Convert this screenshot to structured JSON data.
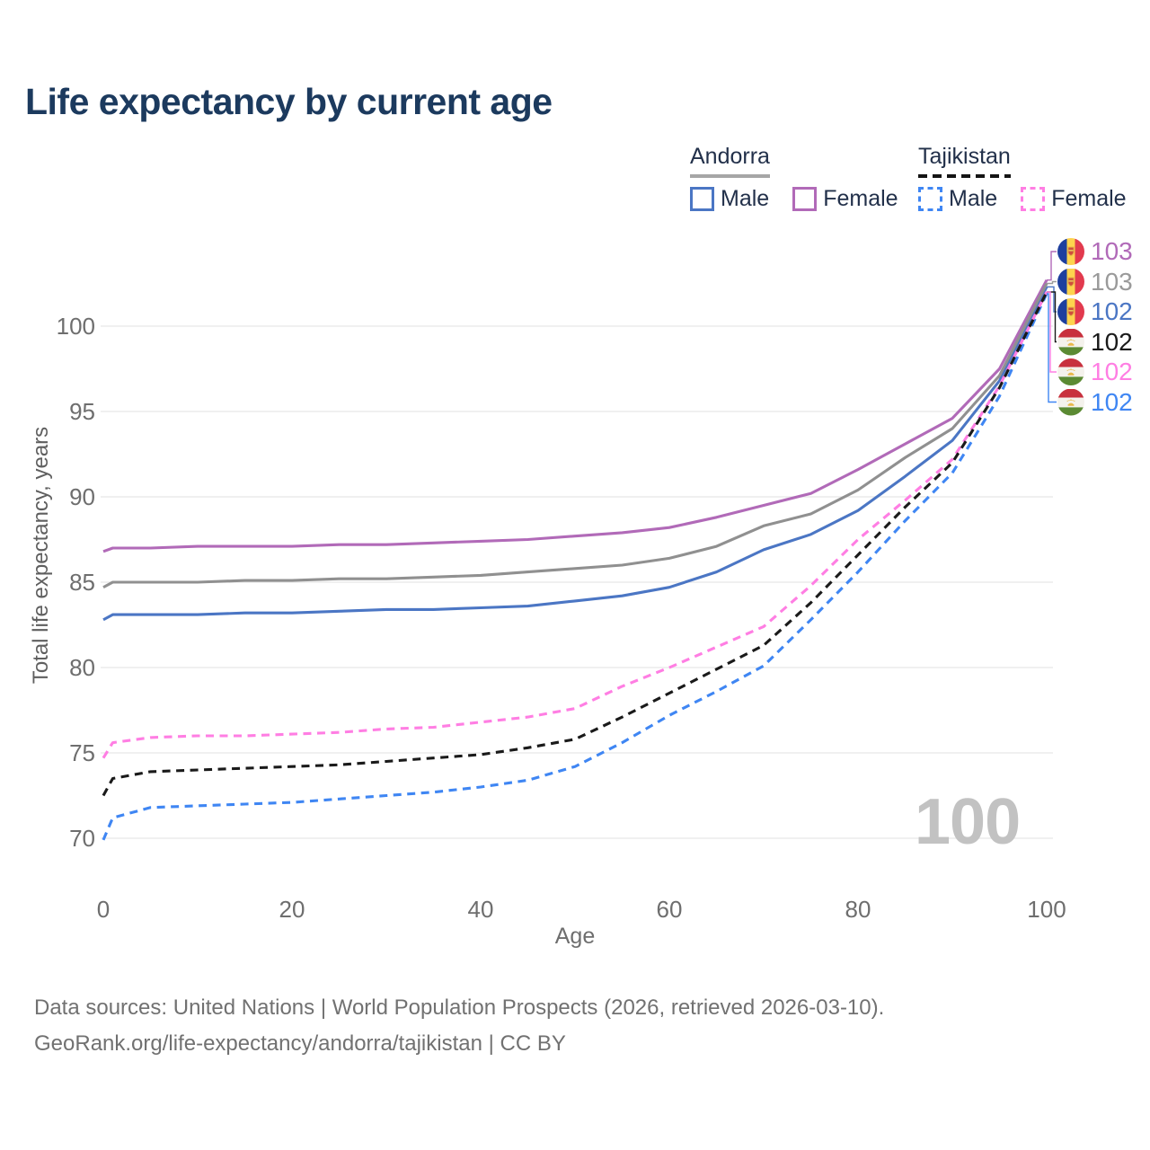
{
  "title": "Life expectancy by current age",
  "watermark": "100",
  "legend": {
    "groups": [
      {
        "name": "Andorra",
        "underline_style": "solid",
        "underline_color": "#a6a6a6",
        "items": [
          {
            "label": "Male",
            "color": "#4b76c4",
            "dash": false
          },
          {
            "label": "Female",
            "color": "#b16ab8",
            "dash": false
          }
        ]
      },
      {
        "name": "Tajikistan",
        "underline_style": "dashed",
        "underline_color": "#141414",
        "items": [
          {
            "label": "Male",
            "color": "#3f86f3",
            "dash": true
          },
          {
            "label": "Female",
            "color": "#ff7ee3",
            "dash": true
          }
        ]
      }
    ]
  },
  "chart_data": {
    "type": "line",
    "title": "Life expectancy by current age",
    "xlabel": "Age",
    "ylabel": "Total life expectancy, years",
    "xlim": [
      0,
      100
    ],
    "ylim": [
      69,
      104
    ],
    "x_ticks": [
      0,
      20,
      40,
      60,
      80,
      100
    ],
    "y_ticks": [
      70,
      75,
      80,
      85,
      90,
      95,
      100
    ],
    "grid": "horizontal",
    "legend_position": "top-right",
    "x": [
      0,
      1,
      5,
      10,
      15,
      20,
      25,
      30,
      35,
      40,
      45,
      50,
      55,
      60,
      65,
      70,
      75,
      80,
      85,
      90,
      95,
      100
    ],
    "series": [
      {
        "name": "Andorra Male",
        "color": "#4b76c4",
        "dash": false,
        "values": [
          82.8,
          83.1,
          83.1,
          83.1,
          83.2,
          83.2,
          83.3,
          83.4,
          83.4,
          83.5,
          83.6,
          83.9,
          84.2,
          84.7,
          85.6,
          86.9,
          87.8,
          89.2,
          91.2,
          93.3,
          96.8,
          102.3
        ]
      },
      {
        "name": "Andorra Female",
        "color": "#b16ab8",
        "dash": false,
        "values": [
          86.8,
          87.0,
          87.0,
          87.1,
          87.1,
          87.1,
          87.2,
          87.2,
          87.3,
          87.4,
          87.5,
          87.7,
          87.9,
          88.2,
          88.8,
          89.5,
          90.2,
          91.6,
          93.1,
          94.6,
          97.5,
          102.7
        ]
      },
      {
        "name": "Andorra (both sexes)",
        "color": "#909090",
        "dash": false,
        "values": [
          84.7,
          85.0,
          85.0,
          85.0,
          85.1,
          85.1,
          85.2,
          85.2,
          85.3,
          85.4,
          85.6,
          85.8,
          86.0,
          86.4,
          87.1,
          88.3,
          89.0,
          90.4,
          92.3,
          94.0,
          97.1,
          102.5
        ]
      },
      {
        "name": "Tajikistan Male",
        "color": "#3f86f3",
        "dash": true,
        "values": [
          69.9,
          71.2,
          71.8,
          71.9,
          72.0,
          72.1,
          72.3,
          72.5,
          72.7,
          73.0,
          73.4,
          74.2,
          75.6,
          77.2,
          78.6,
          80.1,
          82.8,
          85.6,
          88.6,
          91.4,
          95.9,
          101.9
        ]
      },
      {
        "name": "Tajikistan Female",
        "color": "#ff7ee3",
        "dash": true,
        "values": [
          74.7,
          75.6,
          75.9,
          76.0,
          76.0,
          76.1,
          76.2,
          76.4,
          76.5,
          76.8,
          77.1,
          77.6,
          78.9,
          80.0,
          81.2,
          82.4,
          84.8,
          87.5,
          89.8,
          92.2,
          96.5,
          102.0
        ]
      },
      {
        "name": "Tajikistan (both sexes)",
        "color": "#1a1a1a",
        "dash": true,
        "values": [
          72.5,
          73.5,
          73.9,
          74.0,
          74.1,
          74.2,
          74.3,
          74.5,
          74.7,
          74.9,
          75.3,
          75.8,
          77.1,
          78.5,
          79.9,
          81.3,
          83.8,
          86.6,
          89.4,
          92.0,
          96.4,
          102.0
        ]
      }
    ]
  },
  "end_labels": [
    {
      "value": "103",
      "flag": "andorra",
      "color": "#b16ab8",
      "series": "Andorra Female"
    },
    {
      "value": "103",
      "flag": "andorra",
      "color": "#9a9a9a",
      "series": "Andorra (both sexes)"
    },
    {
      "value": "102",
      "flag": "andorra",
      "color": "#4b76c4",
      "series": "Andorra Male"
    },
    {
      "value": "102",
      "flag": "tajikistan",
      "color": "#1a1a1a",
      "series": "Tajikistan (both sexes)"
    },
    {
      "value": "102",
      "flag": "tajikistan",
      "color": "#ff7ee3",
      "series": "Tajikistan Female"
    },
    {
      "value": "102",
      "flag": "tajikistan",
      "color": "#3f86f3",
      "series": "Tajikistan Male"
    }
  ],
  "footer": {
    "line1": "Data sources: United Nations | World Population Prospects (2026, retrieved 2026-03-10).",
    "line2": "GeoRank.org/life-expectancy/andorra/tajikistan | CC BY"
  }
}
